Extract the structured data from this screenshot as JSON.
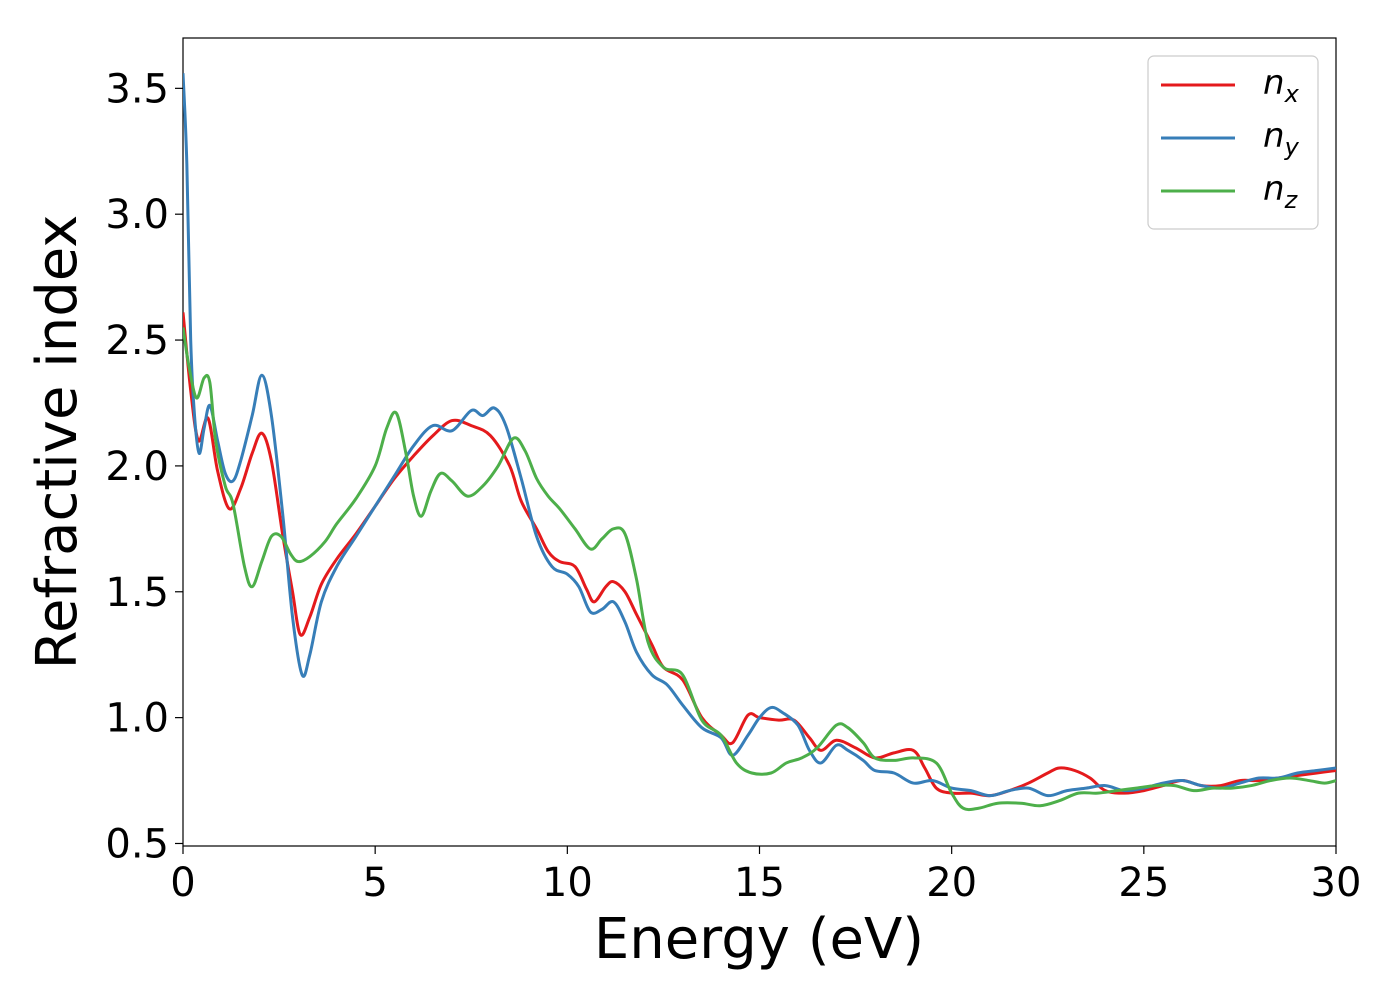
{
  "chart_data": {
    "type": "line",
    "xlabel": "Energy (eV)",
    "ylabel": "Refractive index",
    "xlim": [
      0,
      30
    ],
    "ylim": [
      0.49,
      3.7
    ],
    "xticks": [
      0,
      5,
      10,
      15,
      20,
      25,
      30
    ],
    "xtick_labels": [
      "0",
      "5",
      "10",
      "15",
      "20",
      "25",
      "30"
    ],
    "yticks": [
      0.5,
      1.0,
      1.5,
      2.0,
      2.5,
      3.0,
      3.5
    ],
    "ytick_labels": [
      "0.5",
      "1.0",
      "1.5",
      "2.0",
      "2.5",
      "3.0",
      "3.5"
    ],
    "grid": false,
    "legend_position": "top-right",
    "series": [
      {
        "name": "n_x",
        "label_main": "n",
        "label_sub": "x",
        "color": "#e41a1c",
        "points": [
          [
            0,
            2.61
          ],
          [
            0.2,
            2.3
          ],
          [
            0.4,
            2.1
          ],
          [
            0.65,
            2.19
          ],
          [
            0.9,
            1.98
          ],
          [
            1.2,
            1.83
          ],
          [
            1.5,
            1.91
          ],
          [
            1.8,
            2.05
          ],
          [
            2.05,
            2.13
          ],
          [
            2.3,
            2.02
          ],
          [
            2.6,
            1.72
          ],
          [
            2.85,
            1.5
          ],
          [
            3.05,
            1.33
          ],
          [
            3.3,
            1.4
          ],
          [
            3.6,
            1.53
          ],
          [
            4.0,
            1.63
          ],
          [
            4.5,
            1.73
          ],
          [
            5.0,
            1.84
          ],
          [
            5.5,
            1.95
          ],
          [
            6.0,
            2.04
          ],
          [
            6.5,
            2.12
          ],
          [
            7.0,
            2.18
          ],
          [
            7.5,
            2.16
          ],
          [
            8.0,
            2.12
          ],
          [
            8.5,
            2.0
          ],
          [
            8.8,
            1.86
          ],
          [
            9.2,
            1.75
          ],
          [
            9.5,
            1.66
          ],
          [
            9.8,
            1.62
          ],
          [
            10.2,
            1.6
          ],
          [
            10.5,
            1.51
          ],
          [
            10.7,
            1.46
          ],
          [
            11.0,
            1.52
          ],
          [
            11.2,
            1.54
          ],
          [
            11.5,
            1.5
          ],
          [
            11.8,
            1.41
          ],
          [
            12.2,
            1.29
          ],
          [
            12.5,
            1.2
          ],
          [
            13.0,
            1.15
          ],
          [
            13.5,
            1.0
          ],
          [
            14.0,
            0.93
          ],
          [
            14.3,
            0.9
          ],
          [
            14.7,
            1.01
          ],
          [
            15.0,
            1.0
          ],
          [
            15.5,
            0.99
          ],
          [
            15.9,
            0.99
          ],
          [
            16.3,
            0.92
          ],
          [
            16.6,
            0.87
          ],
          [
            17.0,
            0.91
          ],
          [
            17.5,
            0.88
          ],
          [
            18.0,
            0.84
          ],
          [
            18.5,
            0.86
          ],
          [
            19.0,
            0.87
          ],
          [
            19.3,
            0.8
          ],
          [
            19.6,
            0.72
          ],
          [
            20.0,
            0.7
          ],
          [
            20.5,
            0.7
          ],
          [
            21.0,
            0.69
          ],
          [
            21.5,
            0.71
          ],
          [
            22.0,
            0.74
          ],
          [
            22.5,
            0.78
          ],
          [
            22.8,
            0.8
          ],
          [
            23.2,
            0.79
          ],
          [
            23.6,
            0.76
          ],
          [
            24.0,
            0.71
          ],
          [
            24.5,
            0.7
          ],
          [
            25.0,
            0.71
          ],
          [
            25.5,
            0.73
          ],
          [
            26.0,
            0.75
          ],
          [
            26.5,
            0.73
          ],
          [
            27.0,
            0.73
          ],
          [
            27.5,
            0.75
          ],
          [
            28.0,
            0.75
          ],
          [
            28.5,
            0.76
          ],
          [
            29.0,
            0.77
          ],
          [
            29.5,
            0.78
          ],
          [
            30.0,
            0.79
          ]
        ]
      },
      {
        "name": "n_y",
        "label_main": "n",
        "label_sub": "y",
        "color": "#377eb8",
        "points": [
          [
            0,
            3.56
          ],
          [
            0.1,
            3.2
          ],
          [
            0.2,
            2.5
          ],
          [
            0.3,
            2.2
          ],
          [
            0.42,
            2.05
          ],
          [
            0.55,
            2.15
          ],
          [
            0.7,
            2.24
          ],
          [
            0.9,
            2.1
          ],
          [
            1.1,
            1.97
          ],
          [
            1.3,
            1.94
          ],
          [
            1.5,
            2.02
          ],
          [
            1.8,
            2.2
          ],
          [
            2.05,
            2.36
          ],
          [
            2.3,
            2.2
          ],
          [
            2.6,
            1.8
          ],
          [
            2.85,
            1.4
          ],
          [
            3.1,
            1.17
          ],
          [
            3.3,
            1.25
          ],
          [
            3.6,
            1.46
          ],
          [
            4.0,
            1.6
          ],
          [
            4.5,
            1.72
          ],
          [
            5.0,
            1.84
          ],
          [
            5.5,
            1.96
          ],
          [
            6.0,
            2.08
          ],
          [
            6.5,
            2.16
          ],
          [
            7.0,
            2.14
          ],
          [
            7.5,
            2.22
          ],
          [
            7.8,
            2.2
          ],
          [
            8.1,
            2.23
          ],
          [
            8.4,
            2.16
          ],
          [
            8.8,
            1.95
          ],
          [
            9.2,
            1.72
          ],
          [
            9.6,
            1.6
          ],
          [
            10.0,
            1.57
          ],
          [
            10.3,
            1.52
          ],
          [
            10.6,
            1.42
          ],
          [
            10.9,
            1.43
          ],
          [
            11.2,
            1.46
          ],
          [
            11.5,
            1.38
          ],
          [
            11.8,
            1.26
          ],
          [
            12.2,
            1.17
          ],
          [
            12.6,
            1.13
          ],
          [
            13.0,
            1.05
          ],
          [
            13.5,
            0.96
          ],
          [
            14.0,
            0.92
          ],
          [
            14.3,
            0.85
          ],
          [
            14.7,
            0.93
          ],
          [
            15.0,
            1.0
          ],
          [
            15.3,
            1.04
          ],
          [
            15.6,
            1.02
          ],
          [
            16.0,
            0.97
          ],
          [
            16.3,
            0.87
          ],
          [
            16.6,
            0.82
          ],
          [
            17.0,
            0.89
          ],
          [
            17.3,
            0.87
          ],
          [
            17.7,
            0.83
          ],
          [
            18.0,
            0.79
          ],
          [
            18.5,
            0.78
          ],
          [
            19.0,
            0.74
          ],
          [
            19.5,
            0.75
          ],
          [
            20.0,
            0.72
          ],
          [
            20.5,
            0.71
          ],
          [
            21.0,
            0.69
          ],
          [
            21.5,
            0.71
          ],
          [
            22.0,
            0.72
          ],
          [
            22.5,
            0.69
          ],
          [
            23.0,
            0.71
          ],
          [
            23.5,
            0.72
          ],
          [
            24.0,
            0.73
          ],
          [
            24.5,
            0.71
          ],
          [
            25.0,
            0.72
          ],
          [
            25.5,
            0.74
          ],
          [
            26.0,
            0.75
          ],
          [
            26.5,
            0.73
          ],
          [
            27.0,
            0.72
          ],
          [
            27.5,
            0.74
          ],
          [
            28.0,
            0.76
          ],
          [
            28.5,
            0.76
          ],
          [
            29.0,
            0.78
          ],
          [
            29.5,
            0.79
          ],
          [
            30.0,
            0.8
          ]
        ]
      },
      {
        "name": "n_z",
        "label_main": "n",
        "label_sub": "z",
        "color": "#4daf4a",
        "points": [
          [
            0,
            2.55
          ],
          [
            0.15,
            2.4
          ],
          [
            0.35,
            2.27
          ],
          [
            0.55,
            2.35
          ],
          [
            0.7,
            2.33
          ],
          [
            0.85,
            2.1
          ],
          [
            1.1,
            1.92
          ],
          [
            1.3,
            1.85
          ],
          [
            1.6,
            1.6
          ],
          [
            1.8,
            1.52
          ],
          [
            2.05,
            1.62
          ],
          [
            2.3,
            1.72
          ],
          [
            2.55,
            1.72
          ],
          [
            2.8,
            1.65
          ],
          [
            3.0,
            1.62
          ],
          [
            3.3,
            1.64
          ],
          [
            3.7,
            1.7
          ],
          [
            4.0,
            1.77
          ],
          [
            4.5,
            1.87
          ],
          [
            5.0,
            2.0
          ],
          [
            5.3,
            2.15
          ],
          [
            5.55,
            2.21
          ],
          [
            5.8,
            2.05
          ],
          [
            6.0,
            1.88
          ],
          [
            6.2,
            1.8
          ],
          [
            6.45,
            1.9
          ],
          [
            6.7,
            1.97
          ],
          [
            7.0,
            1.94
          ],
          [
            7.4,
            1.88
          ],
          [
            7.8,
            1.92
          ],
          [
            8.2,
            2.0
          ],
          [
            8.6,
            2.11
          ],
          [
            8.9,
            2.06
          ],
          [
            9.2,
            1.95
          ],
          [
            9.5,
            1.88
          ],
          [
            9.8,
            1.83
          ],
          [
            10.2,
            1.75
          ],
          [
            10.6,
            1.67
          ],
          [
            10.9,
            1.71
          ],
          [
            11.2,
            1.75
          ],
          [
            11.5,
            1.73
          ],
          [
            11.8,
            1.55
          ],
          [
            12.1,
            1.3
          ],
          [
            12.5,
            1.2
          ],
          [
            13.0,
            1.17
          ],
          [
            13.5,
            0.99
          ],
          [
            14.0,
            0.93
          ],
          [
            14.4,
            0.82
          ],
          [
            14.8,
            0.78
          ],
          [
            15.3,
            0.78
          ],
          [
            15.7,
            0.82
          ],
          [
            16.1,
            0.84
          ],
          [
            16.5,
            0.88
          ],
          [
            17.0,
            0.97
          ],
          [
            17.3,
            0.96
          ],
          [
            17.7,
            0.9
          ],
          [
            18.0,
            0.84
          ],
          [
            18.5,
            0.83
          ],
          [
            19.0,
            0.84
          ],
          [
            19.6,
            0.82
          ],
          [
            20.0,
            0.7
          ],
          [
            20.3,
            0.64
          ],
          [
            20.7,
            0.64
          ],
          [
            21.2,
            0.66
          ],
          [
            21.8,
            0.66
          ],
          [
            22.3,
            0.65
          ],
          [
            22.8,
            0.67
          ],
          [
            23.3,
            0.7
          ],
          [
            23.8,
            0.7
          ],
          [
            24.3,
            0.71
          ],
          [
            24.8,
            0.72
          ],
          [
            25.3,
            0.73
          ],
          [
            25.8,
            0.73
          ],
          [
            26.3,
            0.71
          ],
          [
            26.8,
            0.72
          ],
          [
            27.3,
            0.72
          ],
          [
            27.8,
            0.73
          ],
          [
            28.3,
            0.75
          ],
          [
            28.8,
            0.76
          ],
          [
            29.3,
            0.75
          ],
          [
            29.7,
            0.74
          ],
          [
            30.0,
            0.75
          ]
        ]
      }
    ]
  }
}
